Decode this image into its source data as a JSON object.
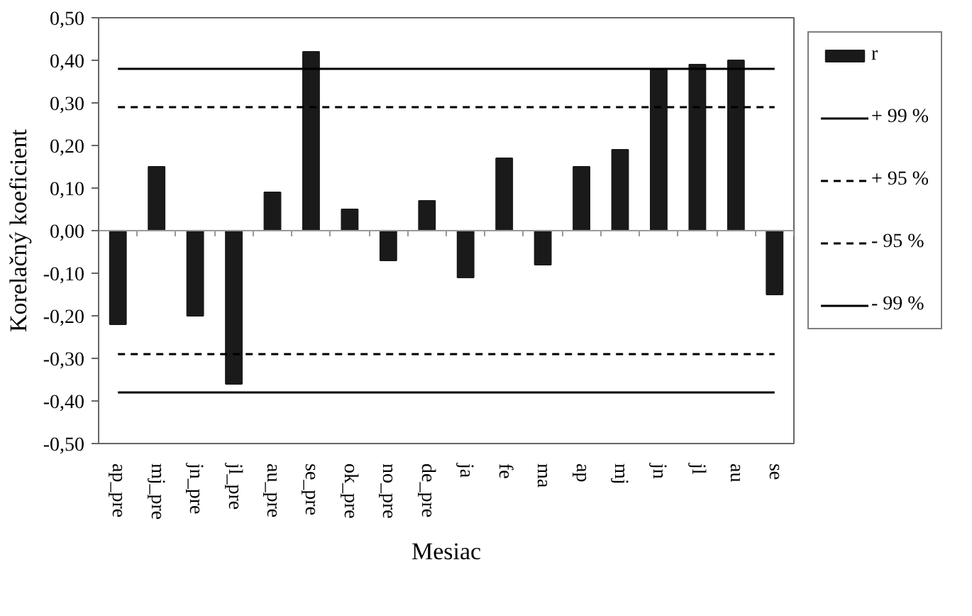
{
  "chart_data": {
    "type": "bar",
    "xlabel": "Mesiac",
    "ylabel": "Korelačný koeficient",
    "categories": [
      "ap_pre",
      "mj_pre",
      "jn_pre",
      "jl_pre",
      "au_pre",
      "se_pre",
      "ok_pre",
      "no_pre",
      "de_pre",
      "ja",
      "fe",
      "ma",
      "ap",
      "mj",
      "jn",
      "jl",
      "au",
      "se"
    ],
    "series": [
      {
        "name": "r",
        "color": "#1a1a1a",
        "values": [
          -0.22,
          0.15,
          -0.2,
          -0.36,
          0.09,
          0.42,
          0.05,
          -0.07,
          0.07,
          -0.11,
          0.17,
          -0.08,
          0.15,
          0.19,
          0.38,
          0.39,
          0.4,
          -0.15
        ]
      },
      {
        "name": "+ 99 %",
        "type": "line",
        "color": "#000000",
        "line_style": "solid",
        "values": [
          0.38,
          0.38,
          0.38,
          0.38,
          0.38,
          0.38,
          0.38,
          0.38,
          0.38,
          0.38,
          0.38,
          0.38,
          0.38,
          0.38,
          0.38,
          0.38,
          0.38,
          0.38
        ]
      },
      {
        "name": "+ 95 %",
        "type": "line",
        "color": "#000000",
        "line_style": "dashed",
        "values": [
          0.29,
          0.29,
          0.29,
          0.29,
          0.29,
          0.29,
          0.29,
          0.29,
          0.29,
          0.29,
          0.29,
          0.29,
          0.29,
          0.29,
          0.29,
          0.29,
          0.29,
          0.29
        ]
      },
      {
        "name": "- 95 %",
        "type": "line",
        "color": "#000000",
        "line_style": "dashed",
        "values": [
          -0.29,
          -0.29,
          -0.29,
          -0.29,
          -0.29,
          -0.29,
          -0.29,
          -0.29,
          -0.29,
          -0.29,
          -0.29,
          -0.29,
          -0.29,
          -0.29,
          -0.29,
          -0.29,
          -0.29,
          -0.29
        ]
      },
      {
        "name": "- 99 %",
        "type": "line",
        "color": "#000000",
        "line_style": "solid",
        "values": [
          -0.38,
          -0.38,
          -0.38,
          -0.38,
          -0.38,
          -0.38,
          -0.38,
          -0.38,
          -0.38,
          -0.38,
          -0.38,
          -0.38,
          -0.38,
          -0.38,
          -0.38,
          -0.38,
          -0.38,
          -0.38
        ]
      }
    ],
    "ylim": [
      -0.5,
      0.5
    ],
    "yticks": [
      {
        "value": -0.5,
        "label": "-0,50"
      },
      {
        "value": -0.4,
        "label": "-0,40"
      },
      {
        "value": -0.3,
        "label": "-0,30"
      },
      {
        "value": -0.2,
        "label": "-0,20"
      },
      {
        "value": -0.1,
        "label": "-0,10"
      },
      {
        "value": 0,
        "label": "0,00"
      },
      {
        "value": 0.1,
        "label": "0,10"
      },
      {
        "value": 0.2,
        "label": "0,20"
      },
      {
        "value": 0.3,
        "label": "0,30"
      },
      {
        "value": 0.4,
        "label": "0,40"
      },
      {
        "value": 0.5,
        "label": "0,50"
      }
    ],
    "legend": "right"
  }
}
